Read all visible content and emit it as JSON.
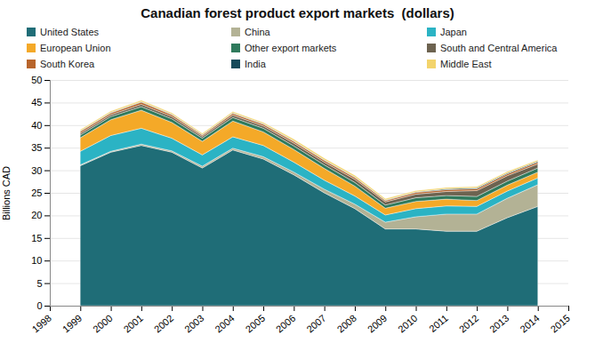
{
  "chart_data": {
    "type": "area",
    "title": "Canadian forest product export markets  (dollars)",
    "y_label": "Billions CAD",
    "stacked": true,
    "grid": true,
    "legend": "top",
    "x": [
      1999,
      2000,
      2001,
      2002,
      2003,
      2004,
      2005,
      2006,
      2007,
      2008,
      2009,
      2010,
      2011,
      2012,
      2013,
      2014
    ],
    "xlim": [
      1998,
      2015
    ],
    "xticks": [
      1998,
      1999,
      2000,
      2001,
      2002,
      2003,
      2004,
      2005,
      2006,
      2007,
      2008,
      2009,
      2010,
      2011,
      2012,
      2013,
      2014,
      2015
    ],
    "ylim": [
      0,
      50
    ],
    "yticks": [
      0,
      5,
      10,
      15,
      20,
      25,
      30,
      35,
      40,
      45,
      50
    ],
    "series": [
      {
        "name": "United States",
        "color": "#1f6d77",
        "values": [
          31,
          34,
          35.5,
          34,
          30.5,
          34.5,
          32.5,
          29,
          25,
          21.5,
          17,
          17,
          16.5,
          16.5,
          19.5,
          22
        ]
      },
      {
        "name": "China",
        "color": "#b3b295",
        "values": [
          0.2,
          0.2,
          0.3,
          0.3,
          0.4,
          0.4,
          0.5,
          0.6,
          0.8,
          1,
          1.5,
          2.7,
          3.8,
          3.8,
          4.3,
          4.8
        ]
      },
      {
        "name": "Japan",
        "color": "#2bb3c4",
        "values": [
          3,
          3.5,
          3.5,
          2.8,
          2.5,
          2.5,
          2.5,
          2.2,
          2,
          1.8,
          1.6,
          1.8,
          1.8,
          1.7,
          1.6,
          1.5
        ]
      },
      {
        "name": "European Union",
        "color": "#f4a928",
        "values": [
          3,
          3.5,
          4,
          3.5,
          3,
          3.5,
          3,
          2.8,
          2.6,
          2.2,
          1.5,
          1.6,
          1.5,
          1.3,
          1.3,
          1.3
        ]
      },
      {
        "name": "Other export markets",
        "color": "#2f7a5c",
        "values": [
          0.6,
          0.7,
          0.8,
          0.8,
          0.7,
          0.8,
          0.8,
          0.8,
          0.8,
          0.8,
          0.7,
          0.8,
          0.8,
          0.9,
          0.9,
          0.9
        ]
      },
      {
        "name": "South and Central America",
        "color": "#6d6350",
        "values": [
          0.4,
          0.4,
          0.5,
          0.5,
          0.4,
          0.5,
          0.5,
          0.6,
          0.6,
          0.7,
          0.7,
          0.8,
          0.9,
          1.3,
          1.2,
          0.9
        ]
      },
      {
        "name": "South Korea",
        "color": "#b8652c",
        "values": [
          0.4,
          0.4,
          0.5,
          0.4,
          0.3,
          0.4,
          0.4,
          0.4,
          0.4,
          0.4,
          0.3,
          0.4,
          0.4,
          0.4,
          0.4,
          0.4
        ]
      },
      {
        "name": "India",
        "color": "#174a5a",
        "values": [
          0.1,
          0.1,
          0.1,
          0.1,
          0.1,
          0.1,
          0.1,
          0.1,
          0.1,
          0.1,
          0.1,
          0.1,
          0.2,
          0.2,
          0.2,
          0.2
        ]
      },
      {
        "name": "Middle East",
        "color": "#f3d46c",
        "values": [
          0.3,
          0.3,
          0.3,
          0.3,
          0.3,
          0.3,
          0.3,
          0.4,
          0.4,
          0.4,
          0.3,
          0.3,
          0.3,
          0.3,
          0.3,
          0.3
        ]
      }
    ]
  }
}
